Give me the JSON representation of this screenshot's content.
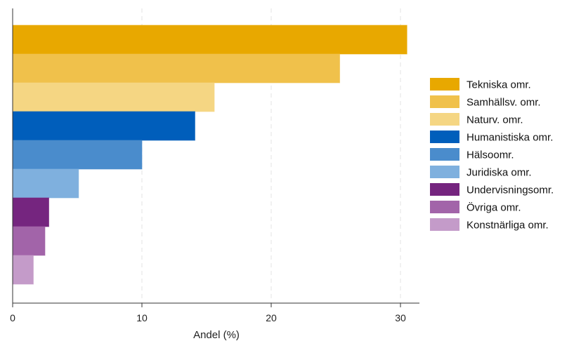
{
  "chart_data": {
    "type": "bar",
    "orientation": "horizontal",
    "xlabel": "Andel (%)",
    "ylabel": "",
    "xlim": [
      0,
      31.5
    ],
    "xticks": [
      0,
      10,
      20,
      30
    ],
    "grid": "vertical dashed",
    "legend_position": "right",
    "series": [
      {
        "name": "Tekniska omr.",
        "value": 30.5,
        "color": "#e8a800"
      },
      {
        "name": "Samhällsv. omr.",
        "value": 25.3,
        "color": "#f0c14b"
      },
      {
        "name": "Naturv. omr.",
        "value": 15.6,
        "color": "#f5d683"
      },
      {
        "name": "Humanistiska omr.",
        "value": 14.1,
        "color": "#005ebb"
      },
      {
        "name": "Hälsoomr.",
        "value": 10.0,
        "color": "#4a8ccc"
      },
      {
        "name": "Juridiska omr.",
        "value": 5.1,
        "color": "#7fb0de"
      },
      {
        "name": "Undervisningsomr.",
        "value": 2.8,
        "color": "#75257f"
      },
      {
        "name": "Övriga omr.",
        "value": 2.5,
        "color": "#a264a9"
      },
      {
        "name": "Konstnärliga omr.",
        "value": 1.6,
        "color": "#c49bc9"
      }
    ]
  }
}
